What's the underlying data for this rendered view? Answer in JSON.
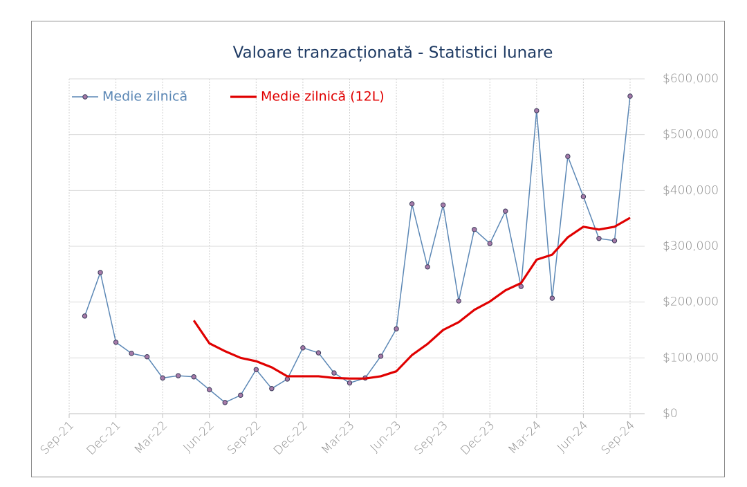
{
  "chart_data": {
    "type": "line",
    "title": "Valoare tranzacționată - Statistici lunare",
    "categories": [
      "Sep-21",
      null,
      null,
      "Dec-21",
      null,
      null,
      "Mar-22",
      null,
      null,
      "Jun-22",
      null,
      null,
      "Sep-22",
      null,
      null,
      "Dec-22",
      null,
      null,
      "Mar-23",
      null,
      null,
      "Jun-23",
      null,
      null,
      "Sep-23",
      null,
      null,
      "Dec-23",
      null,
      null,
      "Mar-24",
      null,
      null,
      "Jun-24",
      null,
      null,
      "Sep-24"
    ],
    "series": [
      {
        "name": "Medie zilnică",
        "color": "#5b87b5",
        "marker": "circle",
        "values": [
          null,
          175000,
          253000,
          128000,
          108000,
          102000,
          64000,
          68000,
          66000,
          43000,
          20000,
          33000,
          79000,
          45000,
          62000,
          118000,
          109000,
          73000,
          55000,
          64000,
          103000,
          152000,
          376000,
          263000,
          374000,
          202000,
          330000,
          305000,
          363000,
          228000,
          543000,
          207000,
          461000,
          389000,
          314000,
          310000,
          569000
        ]
      },
      {
        "name": "Medie zilnică (12L)",
        "color": "#e00000",
        "values": [
          null,
          null,
          null,
          null,
          null,
          null,
          null,
          null,
          167000,
          126000,
          112000,
          100000,
          94000,
          83000,
          67000,
          67000,
          67000,
          64000,
          63000,
          63000,
          67000,
          76000,
          105000,
          125000,
          150000,
          164000,
          186000,
          201000,
          221000,
          234000,
          276000,
          285000,
          316000,
          335000,
          330000,
          335000,
          351000
        ]
      }
    ],
    "ylim": [
      0,
      600000
    ],
    "yticks": [
      {
        "value": 0,
        "label": "$0"
      },
      {
        "value": 100000,
        "label": "$100,000"
      },
      {
        "value": 200000,
        "label": "$200,000"
      },
      {
        "value": 300000,
        "label": "$300,000"
      },
      {
        "value": 400000,
        "label": "$400,000"
      },
      {
        "value": 500000,
        "label": "$500,000"
      },
      {
        "value": 600000,
        "label": "$600,000"
      }
    ],
    "yaxis_side": "right",
    "grid": true,
    "legend": "top-left"
  }
}
